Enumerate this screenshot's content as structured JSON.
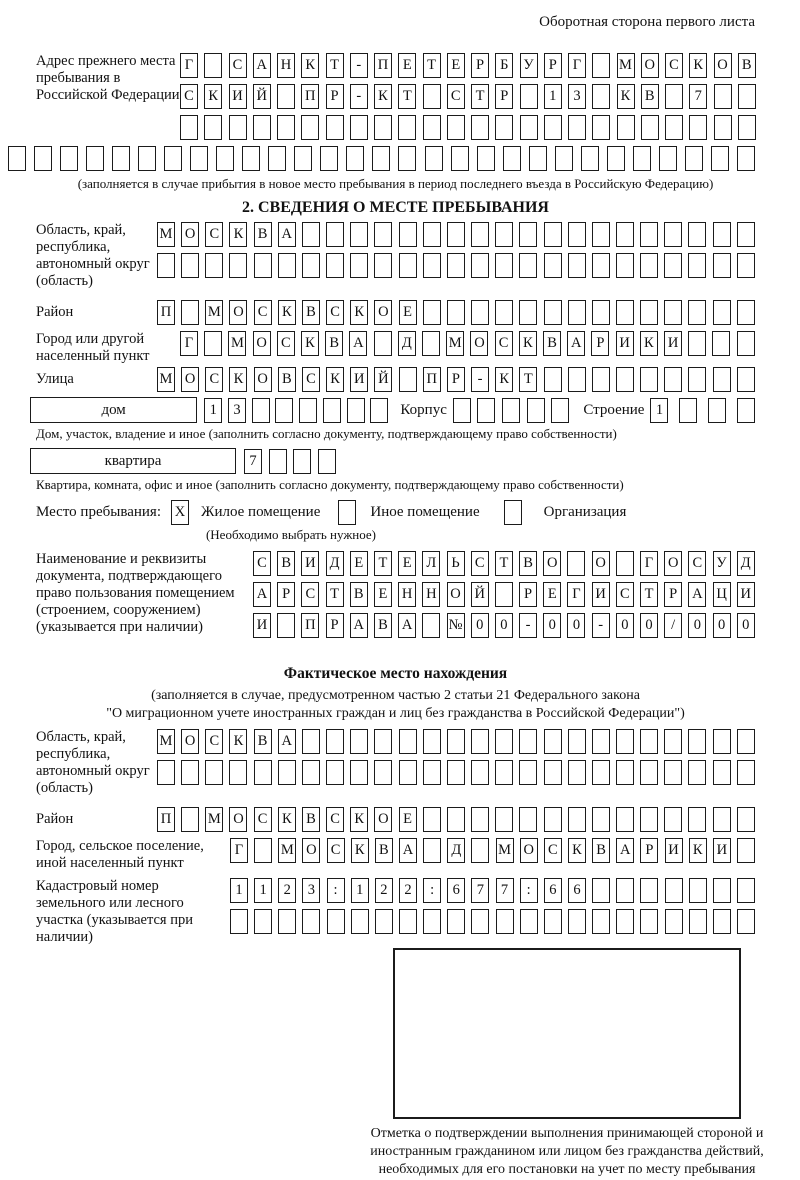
{
  "header": {
    "side_note": "Оборотная сторона первого листа"
  },
  "prev_address": {
    "label": "Адрес прежнего места пребывания в Российской Федерации",
    "rows": [
      {
        "len": 24,
        "text": "Г САНКТ-ПЕТЕРБУРГ МОСКОВ"
      },
      {
        "len": 24,
        "text": "СКИЙ ПР-КТ СТР 13 КВ 7"
      },
      {
        "len": 24,
        "text": ""
      }
    ],
    "full_row": {
      "len": 29,
      "text": ""
    },
    "caption": "(заполняется в случае прибытия в новое место пребывания в период последнего въезда в Российскую Федерацию)"
  },
  "section2": {
    "title": "2. СВЕДЕНИЯ О МЕСТЕ ПРЕБЫВАНИЯ",
    "region": {
      "label": "Область, край, республика, автономный округ (область)",
      "rows": [
        {
          "len": 25,
          "text": "МОСКВА"
        },
        {
          "len": 25,
          "text": ""
        }
      ]
    },
    "district": {
      "label": "Район",
      "row": {
        "len": 25,
        "text": "П МОСКВСКОЕ"
      }
    },
    "city": {
      "label": "Город или другой населенный пункт",
      "row": {
        "len": 24,
        "text": "Г МОСКВА Д МОСКВАРИКИ"
      }
    },
    "street": {
      "label": "Улица",
      "row": {
        "len": 25,
        "text": "МОСКОВСКИЙ ПР-КТ"
      }
    },
    "house": {
      "box_label": "дом",
      "cells": {
        "len": 8,
        "text": "13"
      },
      "korpus_label": "Корпус",
      "korpus_cells": {
        "len": 5,
        "text": ""
      },
      "stroenie_label": "Строение",
      "stroenie_cells": {
        "len": 4,
        "text": "1"
      },
      "caption": "Дом, участок, владение и иное (заполнить согласно документу, подтверждающему право собственности)"
    },
    "apartment": {
      "box_label": "квартира",
      "cells": {
        "len": 4,
        "text": "7"
      },
      "caption": "Квартира, комната, офис и иное (заполнить согласно документу, подтверждающему право собственности)"
    },
    "stay": {
      "label": "Место пребывания:",
      "options": [
        {
          "label": "Жилое помещение",
          "mark": "X"
        },
        {
          "label": "Иное помещение",
          "mark": ""
        },
        {
          "label": "Организация",
          "mark": ""
        }
      ],
      "note": "(Необходимо выбрать нужное)"
    },
    "document": {
      "label": "Наименование и реквизиты документа, подтверждающего право пользования помещением (строением, сооружением) (указывается при наличии)",
      "rows": [
        {
          "len": 21,
          "text": "СВИДЕТЕЛЬСТВО О ГОСУД"
        },
        {
          "len": 21,
          "text": "АРСТВЕННОЙ РЕГИСТРАЦИ"
        },
        {
          "len": 21,
          "text": "И ПРАВА №00-00-00/000"
        }
      ]
    }
  },
  "actual_location": {
    "title": "Фактическое место нахождения",
    "subtitle_line1": "(заполняется в случае, предусмотренном частью 2 статьи 21 Федерального закона",
    "subtitle_line2": "\"О миграционном учете иностранных граждан и лиц без гражданства в Российской Федерации\")",
    "region": {
      "label": "Область, край, республика, автономный округ (область)",
      "rows": [
        {
          "len": 25,
          "text": "МОСКВА"
        },
        {
          "len": 25,
          "text": ""
        }
      ]
    },
    "district": {
      "label": "Район",
      "row": {
        "len": 25,
        "text": "П МОСКВСКОЕ"
      }
    },
    "city": {
      "label": "Город, сельское поселение, иной населенный пункт",
      "row": {
        "len": 22,
        "text": "Г МОСКВА Д МОСКВАРИКИ"
      }
    },
    "cadastral": {
      "label": "Кадастровый номер земельного или лесного участка (указывается при наличии)",
      "rows": [
        {
          "len": 22,
          "text": "1123:122:677:66"
        },
        {
          "len": 22,
          "text": ""
        }
      ]
    },
    "mark_box_caption": "Отметка о подтверждении выполнения принимающей стороной и иностранным гражданином или лицом без гражданства действий, необходимых для его постановки на учет по месту пребывания"
  }
}
